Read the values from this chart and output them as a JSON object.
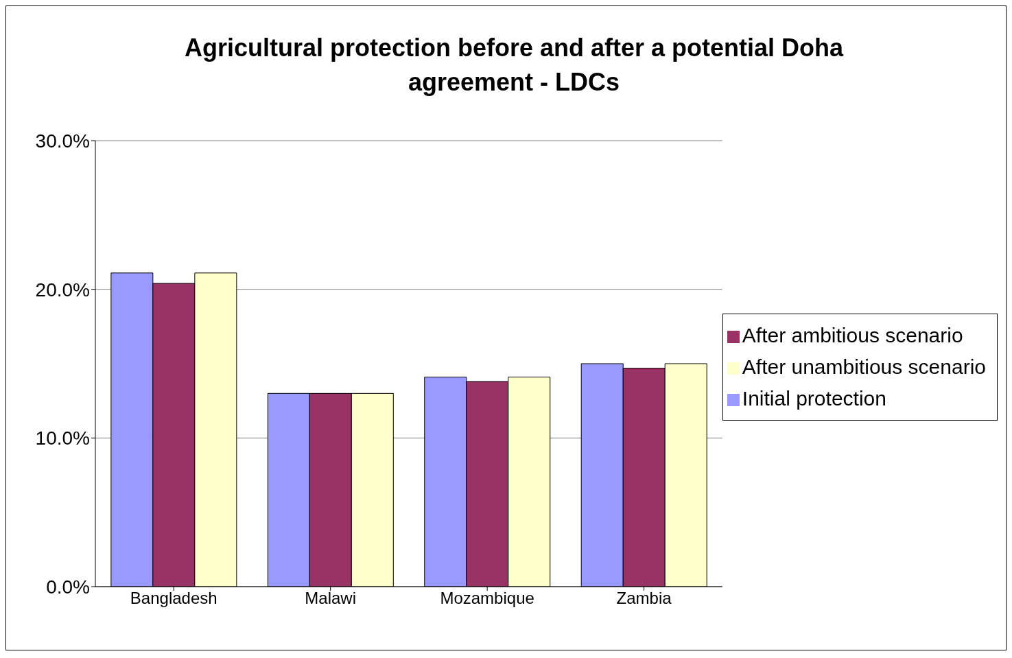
{
  "chart_data": {
    "type": "bar",
    "title": "Agricultural protection before and after a potential Doha agreement - LDCs",
    "categories": [
      "Bangladesh",
      "Malawi",
      "Mozambique",
      "Zambia"
    ],
    "series": [
      {
        "name": "Initial protection",
        "color": "#9999ff",
        "values": [
          21.1,
          13.0,
          14.1,
          15.0
        ]
      },
      {
        "name": "After ambitious scenario",
        "color": "#993366",
        "values": [
          20.4,
          13.0,
          13.8,
          14.7
        ]
      },
      {
        "name": "After unambitious scenario",
        "color": "#ffffcc",
        "values": [
          21.1,
          13.0,
          14.1,
          15.0
        ]
      }
    ],
    "ylim": [
      0,
      30
    ],
    "yticks": [
      {
        "value": 0,
        "label": "0.0%"
      },
      {
        "value": 10,
        "label": "10.0%"
      },
      {
        "value": 20,
        "label": "20.0%"
      },
      {
        "value": 30,
        "label": "30.0%"
      }
    ],
    "grid": "y",
    "legend": "right"
  }
}
